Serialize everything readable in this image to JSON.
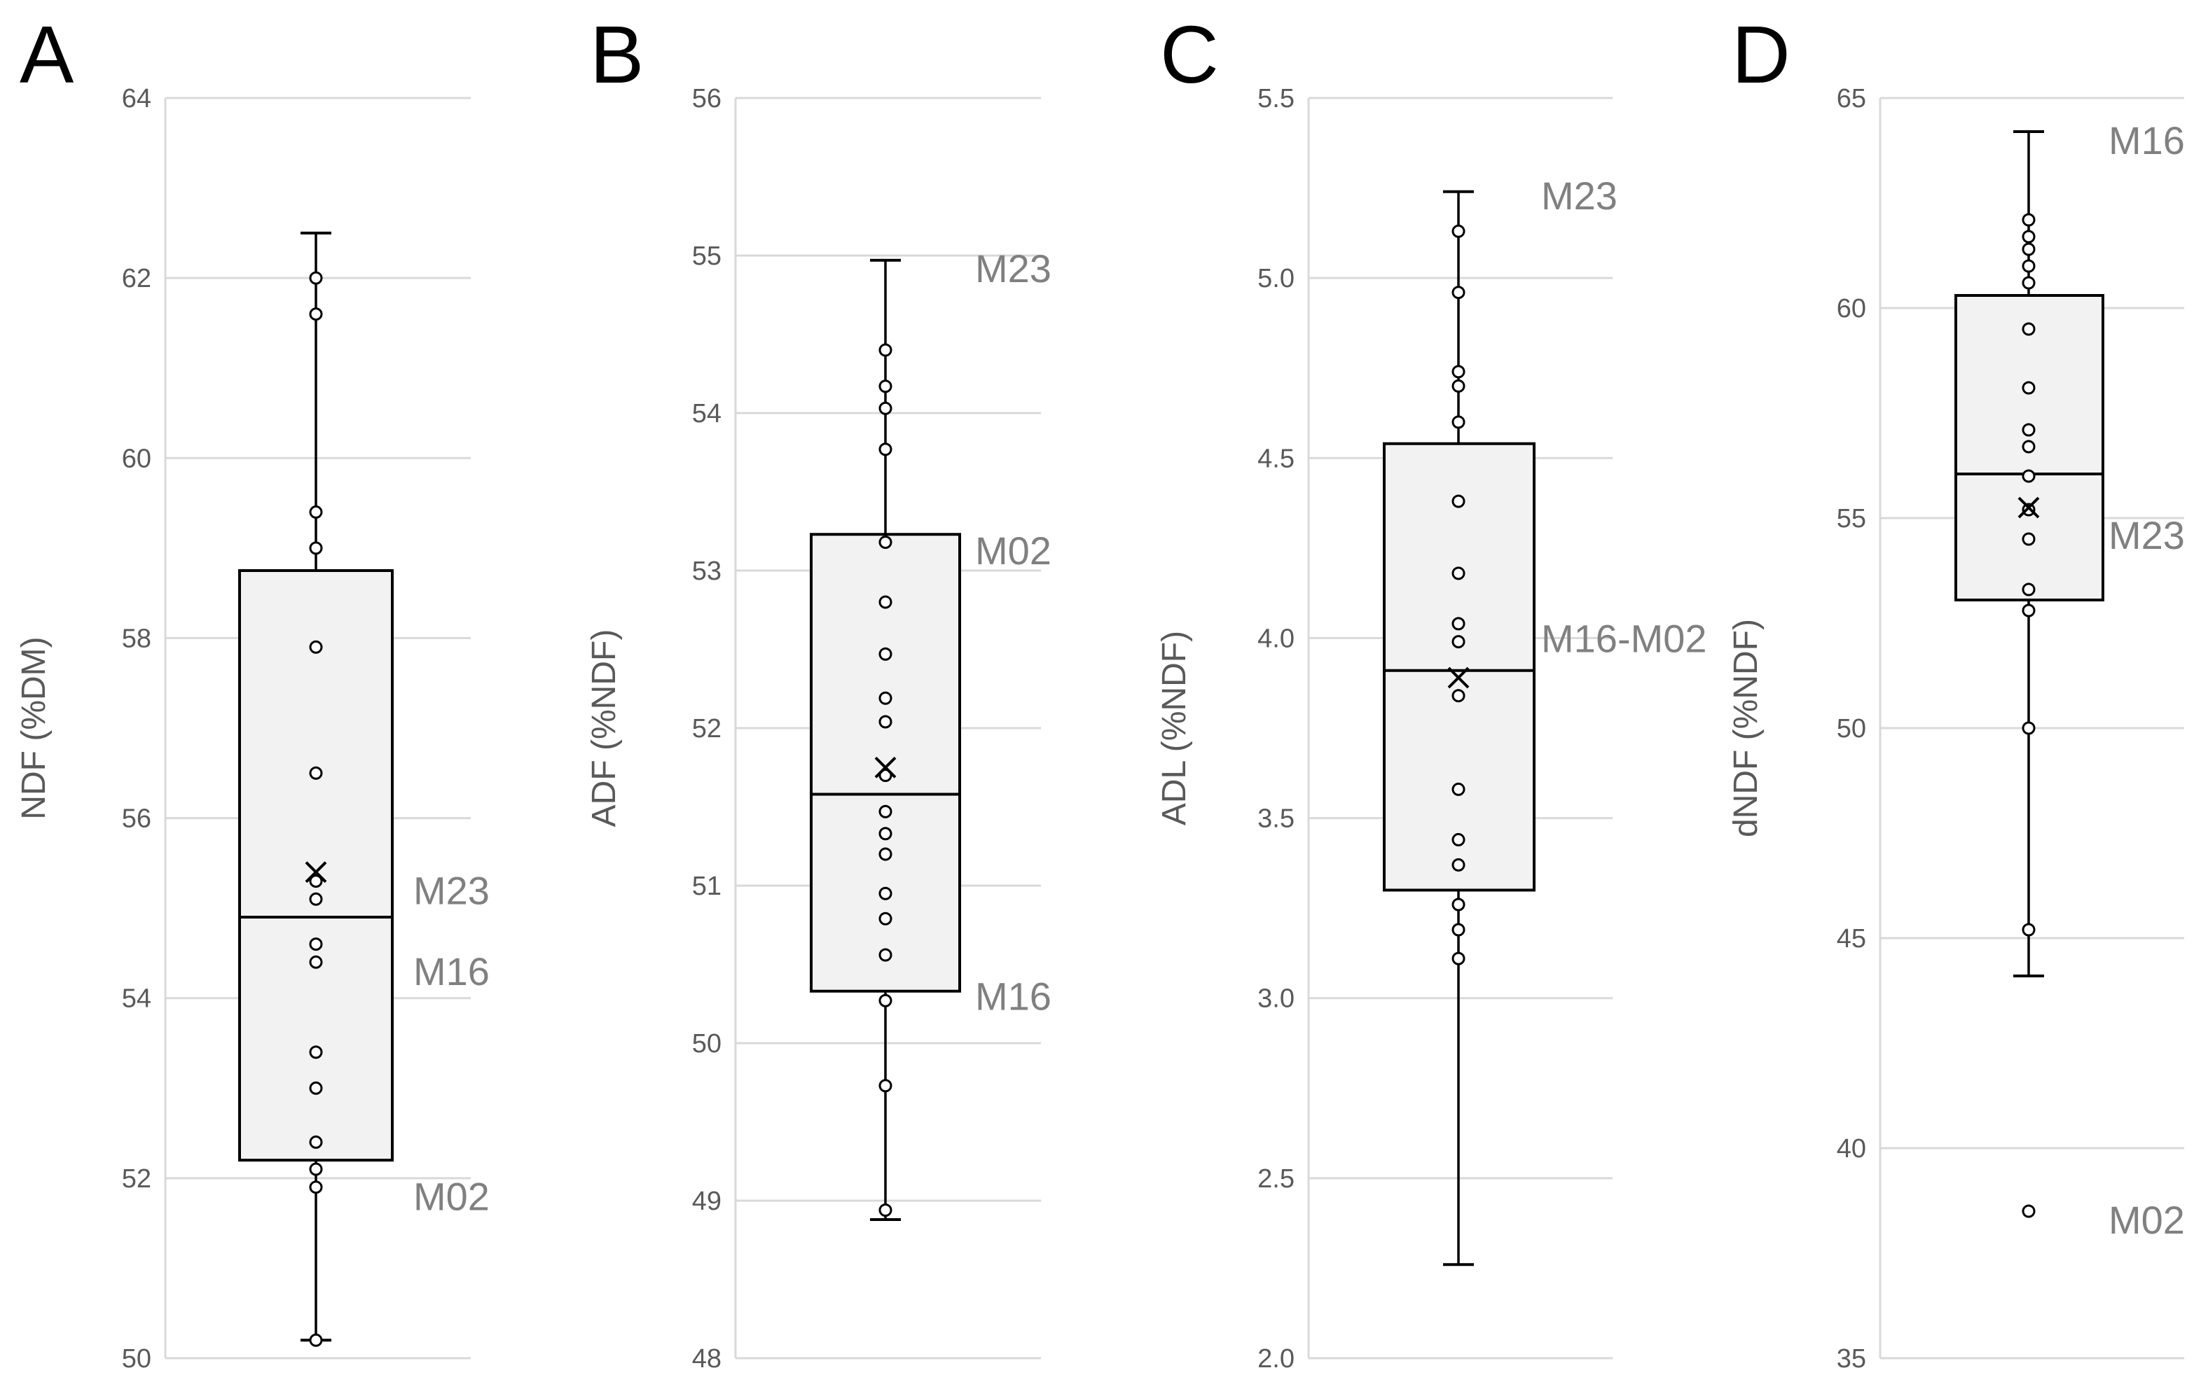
{
  "chart_data": [
    {
      "type": "box",
      "panel": "A",
      "ylabel": "NDF (%DM)",
      "ylim": [
        50,
        64
      ],
      "yticks": [
        50,
        52,
        54,
        56,
        58,
        60,
        62,
        64
      ],
      "tick_decimals": 0,
      "whisker_low": 50.2,
      "q1": 52.2,
      "median": 54.9,
      "q3": 58.75,
      "whisker_high": 62.5,
      "mean": 55.4,
      "points": [
        62.0,
        61.6,
        59.4,
        59.0,
        57.9,
        56.5,
        55.3,
        55.1,
        54.6,
        54.4,
        53.4,
        53.0,
        52.4,
        52.1,
        51.9,
        50.2
      ],
      "annotations": [
        {
          "text": "M23",
          "y": 55.2
        },
        {
          "text": "M16",
          "y": 54.3
        },
        {
          "text": "M02",
          "y": 51.8
        }
      ]
    },
    {
      "type": "box",
      "panel": "B",
      "ylabel": "ADF (%NDF)",
      "ylim": [
        48,
        56
      ],
      "yticks": [
        48,
        49,
        50,
        51,
        52,
        53,
        54,
        55,
        56
      ],
      "tick_decimals": 0,
      "whisker_low": 48.88,
      "q1": 50.33,
      "median": 51.58,
      "q3": 53.23,
      "whisker_high": 54.97,
      "mean": 51.75,
      "points": [
        54.4,
        54.17,
        54.03,
        53.77,
        53.18,
        52.8,
        52.47,
        52.19,
        52.04,
        51.7,
        51.47,
        51.33,
        51.2,
        50.95,
        50.79,
        50.56,
        50.27,
        49.73,
        48.94
      ],
      "annotations": [
        {
          "text": "M23",
          "y": 54.92
        },
        {
          "text": "M02",
          "y": 53.13
        },
        {
          "text": "M16",
          "y": 50.3
        }
      ]
    },
    {
      "type": "box",
      "panel": "C",
      "ylabel": "ADL (%NDF)",
      "ylim": [
        2.0,
        5.5
      ],
      "yticks": [
        2.0,
        2.5,
        3.0,
        3.5,
        4.0,
        4.5,
        5.0,
        5.5
      ],
      "tick_decimals": 1,
      "whisker_low": 2.26,
      "q1": 3.3,
      "median": 3.91,
      "q3": 4.54,
      "whisker_high": 5.24,
      "mean": 3.89,
      "points": [
        5.13,
        4.96,
        4.74,
        4.7,
        4.6,
        4.38,
        4.18,
        4.04,
        3.99,
        3.84,
        3.58,
        3.44,
        3.37,
        3.26,
        3.19,
        3.11
      ],
      "annotations": [
        {
          "text": "M23",
          "y": 5.23
        },
        {
          "text": "M16-M02",
          "y": 4.0
        }
      ]
    },
    {
      "type": "box",
      "panel": "D",
      "ylabel": "dNDF (%NDF)",
      "ylim": [
        35,
        65
      ],
      "yticks": [
        35,
        40,
        45,
        50,
        55,
        60,
        65
      ],
      "tick_decimals": 0,
      "whisker_low": 44.1,
      "q1": 53.05,
      "median": 56.05,
      "q3": 60.3,
      "whisker_high": 64.2,
      "mean": 55.25,
      "points": [
        62.1,
        61.7,
        61.4,
        61.0,
        60.6,
        59.5,
        58.1,
        57.1,
        56.7,
        56.0,
        55.2,
        54.5,
        53.3,
        52.8,
        50.0,
        45.2,
        38.5
      ],
      "annotations": [
        {
          "text": "M16",
          "y": 64.0
        },
        {
          "text": "M23",
          "y": 54.6
        },
        {
          "text": "M02",
          "y": 38.3
        }
      ]
    }
  ]
}
